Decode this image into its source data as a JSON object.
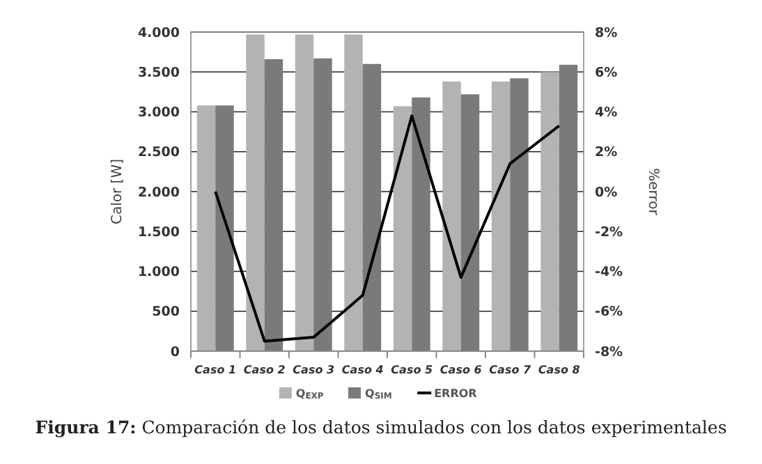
{
  "chart_data": {
    "type": "bar",
    "categories": [
      "Caso 1",
      "Caso 2",
      "Caso 3",
      "Caso 4",
      "Caso 5",
      "Caso 6",
      "Caso 7",
      "Caso 8"
    ],
    "series": [
      {
        "name": "Q$_{EXP}$",
        "color": "#b3b3b3",
        "values": [
          3080,
          3970,
          3970,
          3970,
          3070,
          3380,
          3380,
          3500
        ]
      },
      {
        "name": "Q$_{SIM}$",
        "color": "#7a7a7a",
        "values": [
          3080,
          3660,
          3670,
          3600,
          3180,
          3220,
          3420,
          3590
        ]
      },
      {
        "name": "ERROR",
        "type": "line",
        "axis": "y2",
        "color": "#000000",
        "values": [
          0,
          -7.5,
          -7.3,
          -5.2,
          3.8,
          -4.3,
          1.4,
          3.3
        ]
      }
    ],
    "ylabel": "Calor [W]",
    "y2label": "%error",
    "ylim": [
      0,
      4000
    ],
    "yticks": [
      {
        "value": 0,
        "label": "0"
      },
      {
        "value": 500,
        "label": "500"
      },
      {
        "value": 1000,
        "label": "1.000"
      },
      {
        "value": 1500,
        "label": "1.500"
      },
      {
        "value": 2000,
        "label": "2.000"
      },
      {
        "value": 2500,
        "label": "2.500"
      },
      {
        "value": 3000,
        "label": "3.000"
      },
      {
        "value": 3500,
        "label": "3.500"
      },
      {
        "value": 4000,
        "label": "4.000"
      }
    ],
    "y2lim": [
      -8,
      8
    ],
    "y2ticks": [
      {
        "value": -8,
        "label": "-8%"
      },
      {
        "value": -6,
        "label": "-6%"
      },
      {
        "value": -4,
        "label": "-4%"
      },
      {
        "value": -2,
        "label": "-2%"
      },
      {
        "value": 0,
        "label": "0%"
      },
      {
        "value": 2,
        "label": "2%"
      },
      {
        "value": 4,
        "label": "4%"
      },
      {
        "value": 6,
        "label": "6%"
      },
      {
        "value": 8,
        "label": "8%"
      }
    ],
    "grid": "y",
    "legend": "bottom",
    "marker": "none",
    "line_style": "solid",
    "annotations": [
      "Figura 17: Comparación de los datos simulados con los datos experimentales"
    ]
  }
}
